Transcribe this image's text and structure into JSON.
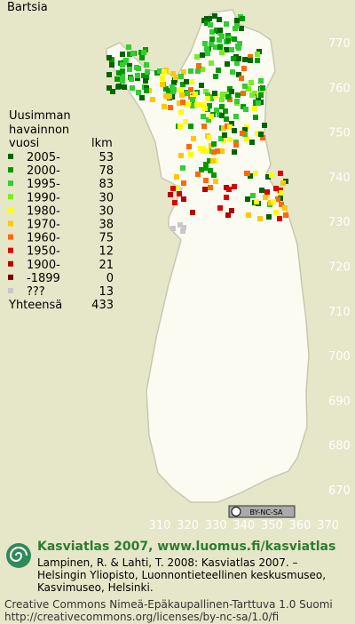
{
  "title": "Bartsia",
  "legend": {
    "heading": [
      "Uusimman",
      "havainnon",
      "vuosi"
    ],
    "count_heading": "lkm",
    "rows": [
      {
        "label": "2005-",
        "count": 53,
        "color": "#006400"
      },
      {
        "label": "2000-",
        "count": 78,
        "color": "#009a00"
      },
      {
        "label": "1995-",
        "count": 83,
        "color": "#33cc33"
      },
      {
        "label": "1990-",
        "count": 30,
        "color": "#77ee22"
      },
      {
        "label": "1980-",
        "count": 30,
        "color": "#ffff00"
      },
      {
        "label": "1970-",
        "count": 38,
        "color": "#ffc800"
      },
      {
        "label": "1960-",
        "count": 75,
        "color": "#ff6a00"
      },
      {
        "label": "1950-",
        "count": 12,
        "color": "#dd0000"
      },
      {
        "label": "1900-",
        "count": 21,
        "color": "#b40000"
      },
      {
        "label": "-1899",
        "count": 0,
        "color": "#7a0000"
      },
      {
        "label": "???",
        "count": 13,
        "color": "#c8c8c8"
      }
    ],
    "total_label": "Yhteensä",
    "total": 433
  },
  "map": {
    "x_labels": [
      310,
      320,
      330,
      340,
      350,
      360,
      370
    ],
    "y_labels": [
      770,
      760,
      750,
      740,
      730,
      720,
      710,
      700,
      690,
      680,
      670
    ]
  },
  "footer": {
    "license_badge": "BY-NC-SA",
    "heading": "Kasviatlas 2007, www.luomus.fi/kasviatlas",
    "citation": [
      "Lampinen, R. & Lahti, T. 2008: Kasviatlas 2007. –",
      "Helsingin Yliopisto, Luonnontieteellinen keskusmuseo,",
      "Kasvimuseo, Helsinki."
    ],
    "license": [
      "Creative Commons Nimeä-Epäkaupallinen-Tarttuva 1.0 Suomi",
      "http://creativecommons.org/licenses/by-nc-sa/1.0/fi"
    ]
  }
}
